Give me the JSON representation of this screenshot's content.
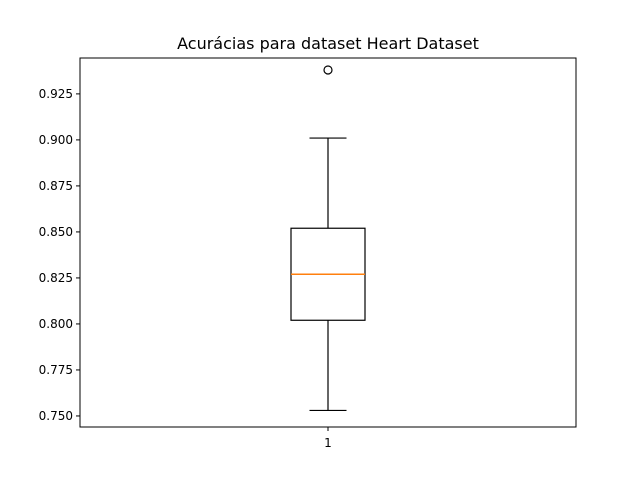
{
  "chart_data": {
    "type": "box",
    "title": "Acurácias para dataset Heart Dataset",
    "xlabel": "",
    "ylabel": "",
    "categories": [
      "1"
    ],
    "ylim": [
      0.744,
      0.9445
    ],
    "yticks": [
      "0.750",
      "0.775",
      "0.800",
      "0.825",
      "0.850",
      "0.875",
      "0.900",
      "0.925"
    ],
    "grid": false,
    "series": [
      {
        "whisker_low": 0.753,
        "q1": 0.802,
        "median": 0.827,
        "q3": 0.852,
        "whisker_high": 0.901,
        "outliers": [
          0.938
        ]
      }
    ],
    "colors": {
      "box": "#000000",
      "median": "#ff7f0e",
      "background": "#ffffff"
    }
  }
}
